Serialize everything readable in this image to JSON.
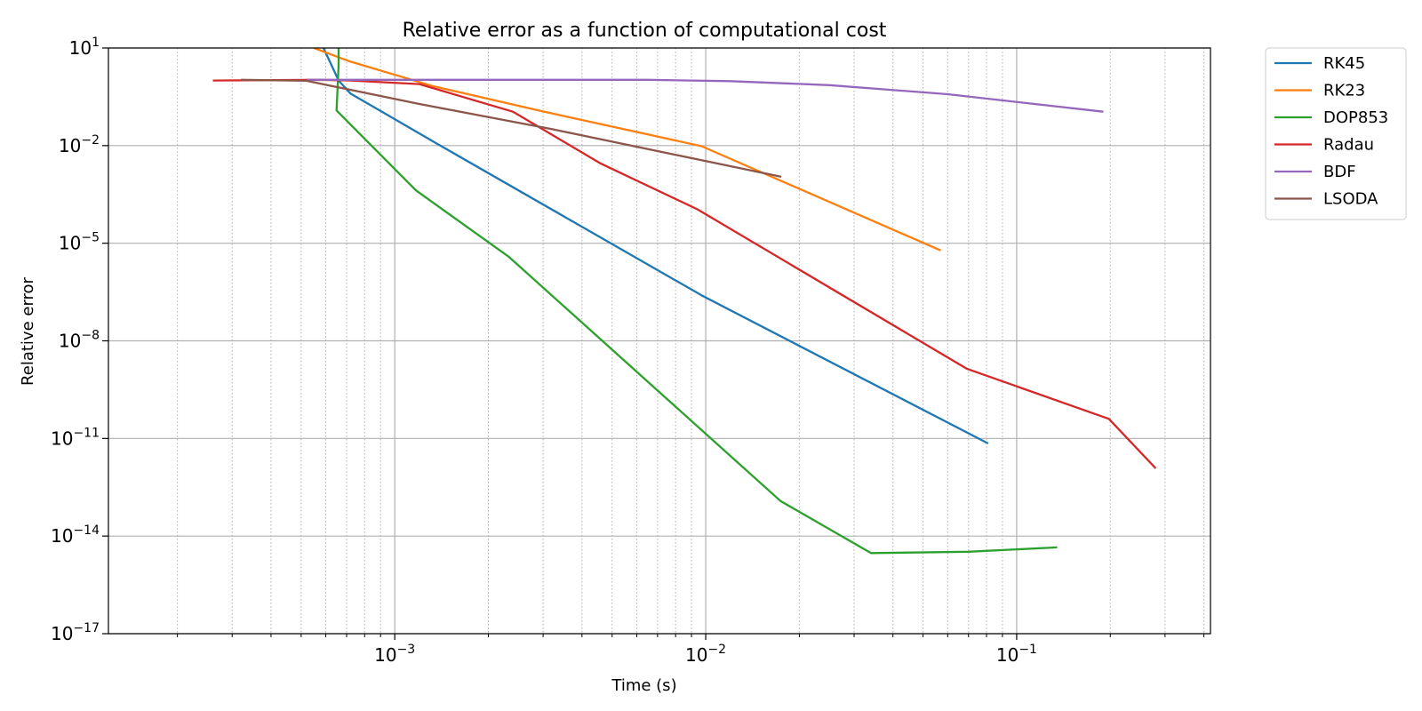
{
  "chart_data": {
    "type": "line",
    "title": "Relative error as a function of computational cost",
    "xlabel": "Time (s)",
    "ylabel": "Relative error",
    "xscale": "log",
    "yscale": "log",
    "xlim": [
      0.00012,
      0.42
    ],
    "ylim": [
      1e-17,
      10
    ],
    "grid": {
      "major": "solid",
      "minor_x": "dotted"
    },
    "legend_position": "outside-top-right",
    "x_ticks": [
      {
        "value": 0.001,
        "base": "10",
        "exp": "−3"
      },
      {
        "value": 0.01,
        "base": "10",
        "exp": "−2"
      },
      {
        "value": 0.1,
        "base": "10",
        "exp": "−1"
      }
    ],
    "y_ticks": [
      {
        "value": 10,
        "base": "10",
        "exp": "1"
      },
      {
        "value": 0.01,
        "base": "10",
        "exp": "−2"
      },
      {
        "value": 1e-05,
        "base": "10",
        "exp": "−5"
      },
      {
        "value": 1e-08,
        "base": "10",
        "exp": "−8"
      },
      {
        "value": 1e-11,
        "base": "10",
        "exp": "−11"
      },
      {
        "value": 1e-14,
        "base": "10",
        "exp": "−14"
      },
      {
        "value": 1e-17,
        "base": "10",
        "exp": "−17"
      }
    ],
    "series": [
      {
        "name": "RK45",
        "color": "#1f77b4",
        "x": [
          0.00059,
          0.00066,
          0.00072,
          0.00139,
          0.0097,
          0.081
        ],
        "y": [
          10,
          1.0,
          0.4,
          0.0105,
          2.5e-07,
          7e-12
        ]
      },
      {
        "name": "RK23",
        "color": "#ff7f0e",
        "x": [
          0.00055,
          0.00071,
          0.00132,
          0.0029,
          0.0097,
          0.057
        ],
        "y": [
          10,
          4,
          0.68,
          0.12,
          0.0096,
          6e-06
        ]
      },
      {
        "name": "DOP853",
        "color": "#2ca02c",
        "x": [
          0.00066,
          0.00066,
          0.00065,
          0.00117,
          0.00233,
          0.0174,
          0.034,
          0.07,
          0.135
        ],
        "y": [
          10,
          3,
          0.12,
          0.00042,
          3.8e-06,
          1.2e-13,
          3e-15,
          3.3e-15,
          4.5e-15
        ]
      },
      {
        "name": "Radau",
        "color": "#d62728",
        "x": [
          0.00026,
          0.00058,
          0.00072,
          0.0012,
          0.0024,
          0.0046,
          0.0094,
          0.069,
          0.198,
          0.28
        ],
        "y": [
          1.0,
          1.05,
          1.0,
          0.78,
          0.11,
          0.0028,
          0.00011,
          1.4e-09,
          4e-11,
          1.2e-12
        ]
      },
      {
        "name": "BDF",
        "color": "#9467bd",
        "x": [
          0.00052,
          0.0025,
          0.0065,
          0.012,
          0.025,
          0.06,
          0.19
        ],
        "y": [
          1.05,
          1.05,
          1.05,
          0.96,
          0.72,
          0.38,
          0.11
        ]
      },
      {
        "name": "LSODA",
        "color": "#8c564b",
        "x": [
          0.00032,
          0.00052,
          0.0012,
          0.0032,
          0.0175
        ],
        "y": [
          1.05,
          0.98,
          0.19,
          0.032,
          0.0011
        ]
      }
    ]
  }
}
